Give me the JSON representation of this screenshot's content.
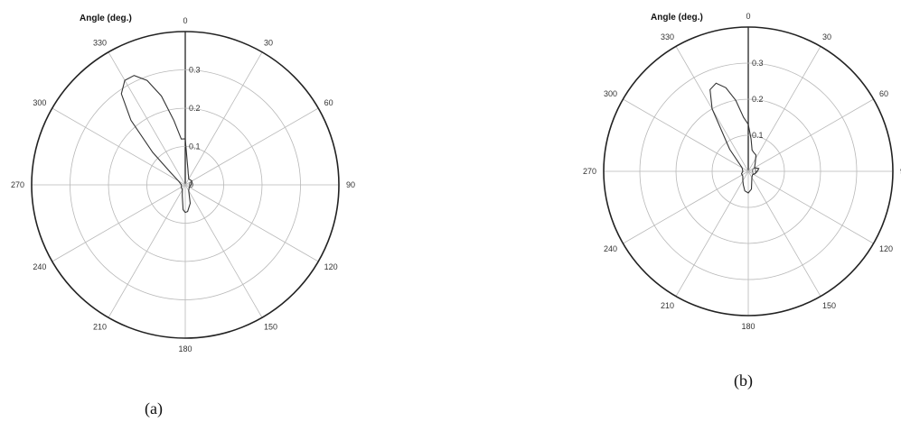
{
  "captions": [
    "(a)",
    "(b)"
  ],
  "chart_data": [
    {
      "type": "polar-line",
      "title": "Angle (deg.)",
      "angle_ticks": [
        "0",
        "30",
        "60",
        "90",
        "120",
        "150",
        "180",
        "210",
        "240",
        "270",
        "300",
        "330"
      ],
      "angle_tick_values": [
        0,
        30,
        60,
        90,
        120,
        150,
        180,
        210,
        240,
        270,
        300,
        330
      ],
      "r_ticks": [
        "0",
        "0.1",
        "0.2",
        "0.3"
      ],
      "r_tick_values": [
        0,
        0.1,
        0.2,
        0.3
      ],
      "rlim": [
        0,
        0.4
      ],
      "grid": true,
      "series": [
        {
          "theta": [
            0,
            5,
            10,
            15,
            20,
            30,
            60,
            90,
            120,
            150,
            165,
            175,
            180,
            185,
            195,
            210,
            240,
            270,
            300,
            310,
            315,
            320,
            325,
            330,
            335,
            340,
            345,
            350,
            355,
            360
          ],
          "r": [
            0.12,
            0.06,
            0.04,
            0.03,
            0.025,
            0.018,
            0.02,
            0.015,
            0.012,
            0.018,
            0.05,
            0.07,
            0.072,
            0.065,
            0.03,
            0.015,
            0.012,
            0.01,
            0.02,
            0.05,
            0.12,
            0.22,
            0.29,
            0.315,
            0.315,
            0.29,
            0.24,
            0.17,
            0.12,
            0.12
          ]
        }
      ]
    },
    {
      "type": "polar-line",
      "title": "Angle (deg.)",
      "angle_ticks": [
        "0",
        "30",
        "60",
        "90",
        "120",
        "150",
        "180",
        "210",
        "240",
        "270",
        "300",
        "330"
      ],
      "angle_tick_values": [
        0,
        30,
        60,
        90,
        120,
        150,
        180,
        210,
        240,
        270,
        300,
        330
      ],
      "r_ticks": [
        "0",
        "0.1",
        "0.2",
        "0.3"
      ],
      "r_tick_values": [
        0,
        0.1,
        0.2,
        0.3
      ],
      "rlim": [
        0,
        0.4
      ],
      "grid": true,
      "series": [
        {
          "theta": [
            0,
            5,
            10,
            15,
            25,
            40,
            60,
            75,
            90,
            110,
            130,
            150,
            170,
            180,
            190,
            200,
            210,
            230,
            250,
            270,
            300,
            320,
            330,
            335,
            340,
            345,
            350,
            355,
            360
          ],
          "r": [
            0.13,
            0.09,
            0.06,
            0.055,
            0.05,
            0.03,
            0.02,
            0.03,
            0.025,
            0.02,
            0.015,
            0.02,
            0.05,
            0.06,
            0.055,
            0.04,
            0.03,
            0.02,
            0.02,
            0.015,
            0.02,
            0.08,
            0.2,
            0.25,
            0.26,
            0.24,
            0.2,
            0.15,
            0.13
          ]
        }
      ]
    }
  ]
}
